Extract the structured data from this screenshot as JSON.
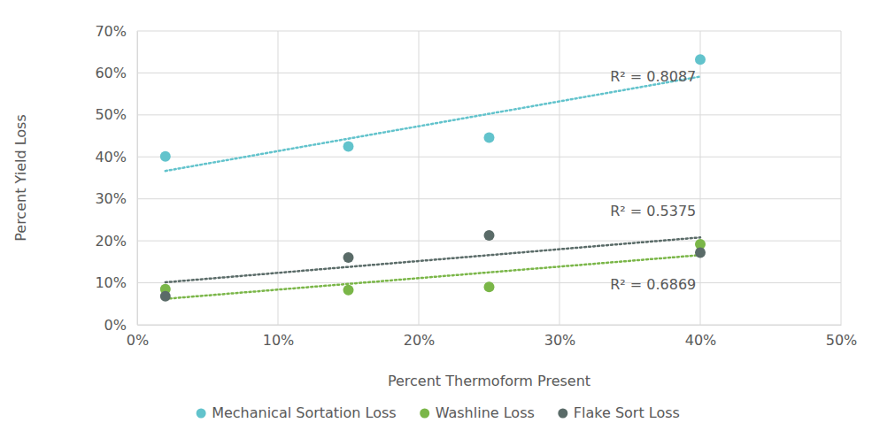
{
  "chart_data": {
    "type": "scatter",
    "x_label": "Percent Thermoform Present",
    "y_label": "Percent Yield Loss",
    "x": [
      2,
      15,
      25,
      40
    ],
    "series": [
      {
        "name": "Mechanical Sortation Loss",
        "color": "#62c3cc",
        "marker": "circle",
        "line_style": "dotted",
        "values": [
          40.1,
          42.5,
          44.6,
          63.2
        ],
        "annotation": "R² = 0.8087"
      },
      {
        "name": "Washline Loss",
        "color": "#7ab648",
        "marker": "circle",
        "line_style": "dotted",
        "values": [
          8.5,
          8.3,
          9.0,
          19.2
        ],
        "annotation": "R² = 0.6869"
      },
      {
        "name": "Flake Sort Loss",
        "color": "#5a6b68",
        "marker": "circle",
        "line_style": "dotted",
        "values": [
          6.8,
          16.0,
          21.3,
          17.2
        ],
        "annotation": "R² = 0.5375"
      }
    ],
    "xlim": [
      0,
      50
    ],
    "xticks": [
      {
        "value": 0,
        "label": "0%"
      },
      {
        "value": 10,
        "label": "10%"
      },
      {
        "value": 20,
        "label": "20%"
      },
      {
        "value": 30,
        "label": "30%"
      },
      {
        "value": 40,
        "label": "40%"
      },
      {
        "value": 50,
        "label": "50%"
      }
    ],
    "ylim": [
      0,
      70
    ],
    "yticks": [
      {
        "value": 0,
        "label": "0%"
      },
      {
        "value": 10,
        "label": "10%"
      },
      {
        "value": 20,
        "label": "20%"
      },
      {
        "value": 30,
        "label": "30%"
      },
      {
        "value": 40,
        "label": "40%"
      },
      {
        "value": 50,
        "label": "50%"
      },
      {
        "value": 60,
        "label": "60%"
      },
      {
        "value": 70,
        "label": "70%"
      }
    ],
    "grid": true,
    "legend": "bottom"
  }
}
